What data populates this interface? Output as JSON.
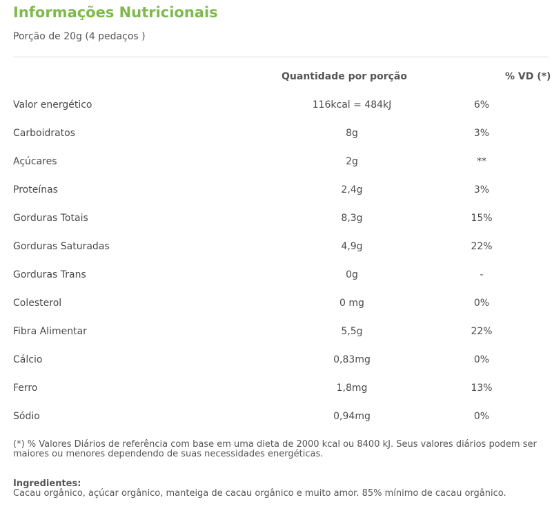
{
  "panel": {
    "title": "Informações Nutricionais",
    "portion": "Porção de 20g (4 pedaços )"
  },
  "table": {
    "header_quantity": "Quantidade por porção",
    "header_vd": "% VD (*)",
    "rows": [
      {
        "name": "Valor energético",
        "quantity": "116kcal = 484kJ",
        "vd": "6%"
      },
      {
        "name": "Carboidratos",
        "quantity": "8g",
        "vd": "3%"
      },
      {
        "name": "Açúcares",
        "quantity": "2g",
        "vd": "**"
      },
      {
        "name": "Proteínas",
        "quantity": "2,4g",
        "vd": "3%"
      },
      {
        "name": "Gorduras Totais",
        "quantity": "8,3g",
        "vd": "15%"
      },
      {
        "name": "Gorduras Saturadas",
        "quantity": "4,9g",
        "vd": "22%"
      },
      {
        "name": "Gorduras Trans",
        "quantity": "0g",
        "vd": "-"
      },
      {
        "name": "Colesterol",
        "quantity": "0 mg",
        "vd": "0%"
      },
      {
        "name": "Fibra Alimentar",
        "quantity": "5,5g",
        "vd": "22%"
      },
      {
        "name": "Cálcio",
        "quantity": "0,83mg",
        "vd": "0%"
      },
      {
        "name": "Ferro",
        "quantity": "1,8mg",
        "vd": "13%"
      },
      {
        "name": "Sódio",
        "quantity": "0,94mg",
        "vd": "0%"
      }
    ]
  },
  "footnote": "(*) % Valores Diários de referência com base em uma dieta de 2000 kcal ou 8400 kJ. Seus valores diários podem ser maiores ou menores dependendo de suas necessidades energéticas.",
  "ingredients": {
    "label": "Ingredientes:",
    "text": "Cacau orgânico, açúcar orgânico, manteiga de cacau orgânico e muito amor. 85% mínimo de cacau orgânico."
  },
  "colors": {
    "title": "#7dba4b",
    "text": "#4a4a4a",
    "divider": "#d9d9d9"
  }
}
